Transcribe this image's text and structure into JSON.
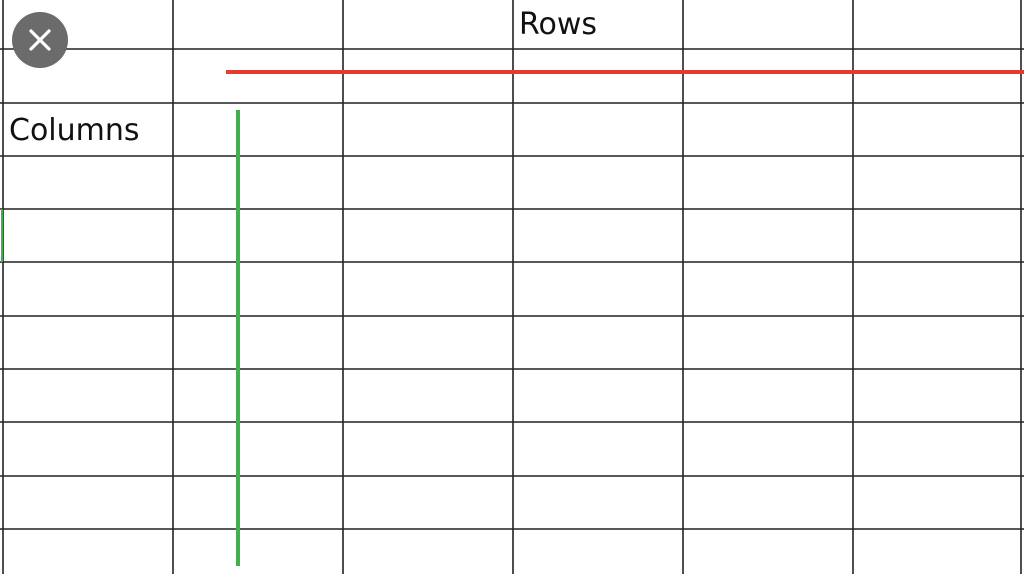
{
  "cells": {
    "rows_label": "Rows",
    "columns_label": "Columns"
  },
  "grid": {
    "column_count": 6,
    "row_count": 11,
    "line_color": "#222222"
  },
  "annotations": {
    "rows_line_color": "#e8392f",
    "columns_line_color": "#3fb24d"
  },
  "overlay": {
    "close_icon": "close-icon",
    "close_button_color": "#6b6b6b"
  }
}
